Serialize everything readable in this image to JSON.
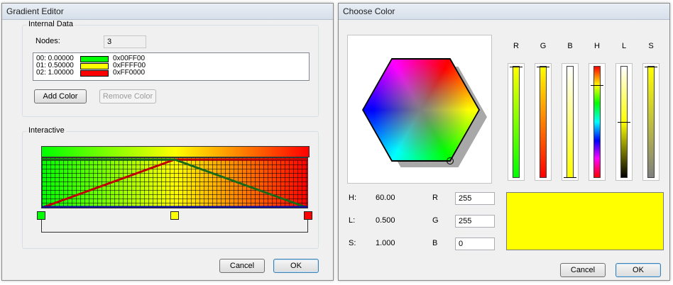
{
  "gradient_editor": {
    "title": "Gradient Editor",
    "internal_data_label": "Internal Data",
    "nodes_label": "Nodes:",
    "nodes_value": "3",
    "nodes": [
      {
        "index_pos": "00: 0.00000",
        "hex": "0x00FF00",
        "color": "#00ff00"
      },
      {
        "index_pos": "01: 0.50000",
        "hex": "0xFFFF00",
        "color": "#ffff00"
      },
      {
        "index_pos": "02: 1.00000",
        "hex": "0xFF0000",
        "color": "#ff0000"
      }
    ],
    "add_color_label": "Add Color",
    "remove_color_label": "Remove Color",
    "interactive_label": "Interactive",
    "cancel_label": "Cancel",
    "ok_label": "OK"
  },
  "choose_color": {
    "title": "Choose Color",
    "channel_labels": [
      "R",
      "G",
      "B",
      "H",
      "L",
      "S"
    ],
    "h_label": "H:",
    "h_value": "60.00",
    "l_label": "L:",
    "l_value": "0.500",
    "s_label": "S:",
    "s_value": "1.000",
    "r_label": "R",
    "r_value": "255",
    "g_label": "G",
    "g_value": "255",
    "b_label": "B",
    "b_value": "0",
    "preview_color": "#ffff00",
    "cancel_label": "Cancel",
    "ok_label": "OK"
  }
}
